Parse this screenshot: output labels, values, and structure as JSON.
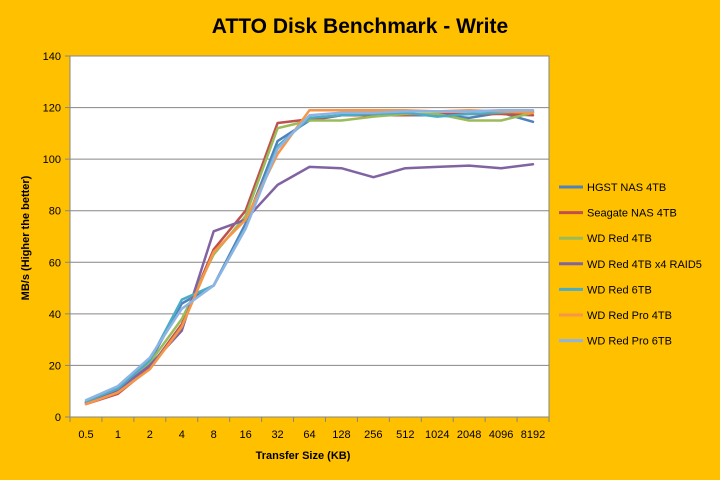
{
  "chart_data": {
    "type": "line",
    "title": "ATTO Disk Benchmark - Write",
    "xlabel": "Transfer Size (KB)",
    "ylabel": "MB/s (Higher the better)",
    "ylim": [
      0,
      140
    ],
    "yticks": [
      0,
      20,
      40,
      60,
      80,
      100,
      120,
      140
    ],
    "grid": "horizontal",
    "legend": "right",
    "categories": [
      "0.5",
      "1",
      "2",
      "4",
      "8",
      "16",
      "32",
      "64",
      "128",
      "256",
      "512",
      "1024",
      "2048",
      "4096",
      "8192"
    ],
    "series": [
      {
        "name": "HGST NAS 4TB",
        "color": "#4f81bd",
        "values": [
          5.5,
          10.5,
          21.5,
          44,
          51,
          75,
          107,
          115,
          117,
          117,
          117,
          117,
          116,
          118,
          114.5
        ]
      },
      {
        "name": "Seagate NAS 4TB",
        "color": "#c0504d",
        "values": [
          5,
          9,
          19,
          36,
          65,
          80,
          114,
          115.5,
          117,
          117,
          117,
          117.5,
          117.5,
          117.5,
          117
        ]
      },
      {
        "name": "WD Red 4TB",
        "color": "#9bbb59",
        "values": [
          5.5,
          10,
          21,
          38,
          63,
          78,
          112,
          115,
          115,
          116.5,
          117.5,
          117.5,
          115,
          115,
          118
        ]
      },
      {
        "name": "WD Red 4TB x4 RAID5",
        "color": "#8064a2",
        "values": [
          5.5,
          10.5,
          20,
          33.5,
          72,
          76.5,
          90,
          97,
          96.5,
          93,
          96.5,
          97,
          97.5,
          96.5,
          98
        ]
      },
      {
        "name": "WD Red 6TB",
        "color": "#4bacc6",
        "values": [
          6,
          11,
          22,
          45.5,
          51,
          73.5,
          105,
          116,
          117,
          117.5,
          118,
          116.5,
          117.5,
          118,
          118.5
        ]
      },
      {
        "name": "WD Red Pro 4TB",
        "color": "#f79646",
        "values": [
          5,
          9.5,
          18.5,
          35,
          64,
          76.5,
          102,
          119,
          119,
          119,
          119,
          118.5,
          119,
          118.5,
          118
        ]
      },
      {
        "name": "WD Red Pro 6TB",
        "color": "#8db4e2",
        "values": [
          6.5,
          12,
          23,
          42,
          51,
          73,
          104,
          117,
          118,
          118,
          118.5,
          118.5,
          118.5,
          119,
          119
        ]
      }
    ]
  }
}
